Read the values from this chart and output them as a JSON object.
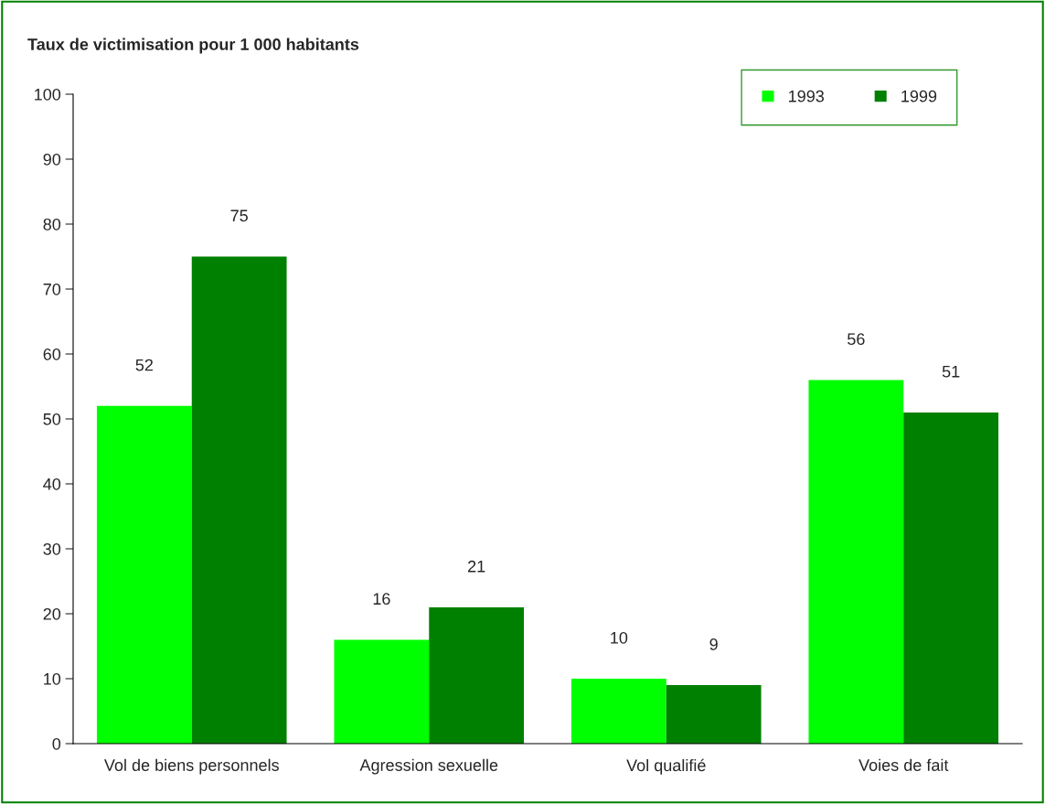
{
  "chart_data": {
    "type": "bar",
    "title": "Taux de victimisation pour 1 000 habitants",
    "categories": [
      "Vol de biens personnels",
      "Agression sexuelle",
      "Vol qualifié",
      "Voies de fait"
    ],
    "series": [
      {
        "name": "1993",
        "color": "#00ff00",
        "values": [
          52,
          16,
          10,
          56
        ]
      },
      {
        "name": "1999",
        "color": "#008000",
        "values": [
          75,
          21,
          9,
          51
        ]
      }
    ],
    "ylim": [
      0,
      100
    ],
    "yticks": [
      0,
      10,
      20,
      30,
      40,
      50,
      60,
      70,
      80,
      90,
      100
    ],
    "data_labels": true,
    "legend": "top right",
    "grid": false
  }
}
